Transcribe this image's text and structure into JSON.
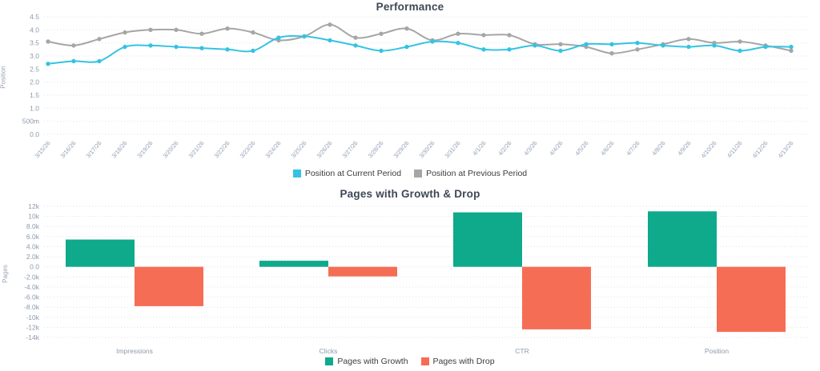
{
  "chart_data": [
    {
      "type": "line",
      "title": "Performance",
      "y_axis_title": "Position",
      "ylim": [
        0,
        4.5
      ],
      "grid": true,
      "legend_position": "bottom",
      "y_tick_labels": [
        "4.5",
        "4.0",
        "3.5",
        "3.0",
        "2.5",
        "2.0",
        "1.5",
        "1.0",
        "500m",
        "0.0"
      ],
      "y_tick_values": [
        4.5,
        4.0,
        3.5,
        3.0,
        2.5,
        2.0,
        1.5,
        1.0,
        0.5,
        0.0
      ],
      "x_labels": [
        "3/15/26",
        "3/16/26",
        "3/17/26",
        "3/18/26",
        "3/19/26",
        "3/20/26",
        "3/21/26",
        "3/22/26",
        "3/23/26",
        "3/24/26",
        "3/25/26",
        "3/26/26",
        "3/27/26",
        "3/28/26",
        "3/29/26",
        "3/30/26",
        "3/31/26",
        "4/1/26",
        "4/2/26",
        "4/3/26",
        "4/4/26",
        "4/5/26",
        "4/6/26",
        "4/7/26",
        "4/8/26",
        "4/9/26",
        "4/10/26",
        "4/11/26",
        "4/12/26",
        "4/13/26"
      ],
      "series": [
        {
          "name": "Position at Current Period",
          "color": "#34c3e3",
          "values": [
            2.7,
            2.8,
            2.8,
            3.35,
            3.4,
            3.35,
            3.3,
            3.25,
            3.2,
            3.7,
            3.75,
            3.6,
            3.4,
            3.2,
            3.35,
            3.55,
            3.5,
            3.25,
            3.25,
            3.4,
            3.2,
            3.45,
            3.45,
            3.5,
            3.4,
            3.35,
            3.4,
            3.2,
            3.35,
            3.35
          ]
        },
        {
          "name": "Position at Previous Period",
          "color": "#a6a6a6",
          "values": [
            3.55,
            3.4,
            3.65,
            3.9,
            4.0,
            4.0,
            3.85,
            4.05,
            3.9,
            3.6,
            3.75,
            4.2,
            3.7,
            3.85,
            4.05,
            3.6,
            3.85,
            3.8,
            3.8,
            3.45,
            3.45,
            3.35,
            3.1,
            3.25,
            3.45,
            3.65,
            3.5,
            3.55,
            3.4,
            3.2
          ]
        }
      ]
    },
    {
      "type": "bar",
      "title": "Pages with Growth & Drop",
      "y_axis_title": "Pages",
      "ylim": [
        -14000,
        12000
      ],
      "grid": true,
      "legend_position": "bottom",
      "y_tick_labels": [
        "12k",
        "10k",
        "8.0k",
        "6.0k",
        "4.0k",
        "2.0k",
        "0.0",
        "-2.0k",
        "-4.0k",
        "-6.0k",
        "-8.0k",
        "-10k",
        "-12k",
        "-14k"
      ],
      "y_tick_values": [
        12000,
        10000,
        8000,
        6000,
        4000,
        2000,
        0,
        -2000,
        -4000,
        -6000,
        -8000,
        -10000,
        -12000,
        -14000
      ],
      "categories": [
        "Impressions",
        "Clicks",
        "CTR",
        "Position"
      ],
      "series": [
        {
          "name": "Pages with Growth",
          "color": "#0fa98c",
          "values": [
            5400,
            1200,
            10800,
            11000
          ]
        },
        {
          "name": "Pages with Drop",
          "color": "#f66d55",
          "values": [
            -7800,
            -1900,
            -12400,
            -12900
          ]
        }
      ]
    }
  ]
}
